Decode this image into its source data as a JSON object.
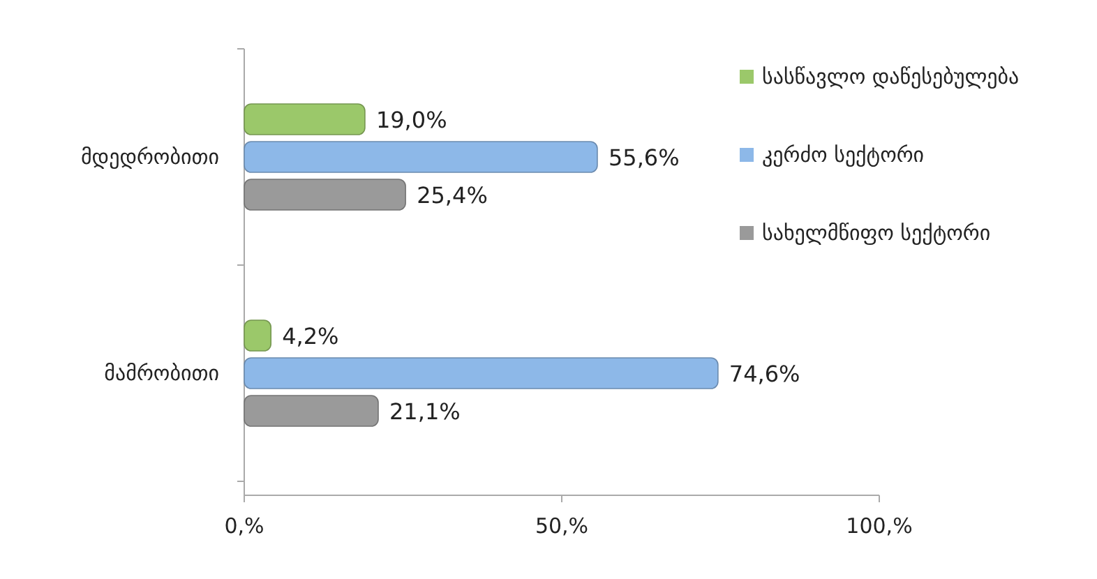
{
  "chart_data": {
    "type": "bar",
    "orientation": "horizontal",
    "categories": [
      "მდედრობითი",
      "მამრობითი"
    ],
    "series": [
      {
        "name": "სასწავლო დაწესებულება",
        "color": "#9bc86a",
        "values": [
          19.0,
          4.2
        ],
        "value_labels": [
          "19,0%",
          "4,2%"
        ]
      },
      {
        "name": "კერძო სექტორი",
        "color": "#8db8e8",
        "values": [
          55.6,
          74.6
        ],
        "value_labels": [
          "55,6%",
          "74,6%"
        ]
      },
      {
        "name": "სახელმწიფო სექტორი",
        "color": "#9a9a9a",
        "values": [
          25.4,
          21.1
        ],
        "value_labels": [
          "25,4%",
          "21,1%"
        ]
      }
    ],
    "xlim": [
      0,
      100
    ],
    "xticks": [
      {
        "value": 0,
        "label": "0,%"
      },
      {
        "value": 50,
        "label": "50,%"
      },
      {
        "value": 100,
        "label": "100,%"
      }
    ],
    "legend": "right",
    "grid": false
  }
}
